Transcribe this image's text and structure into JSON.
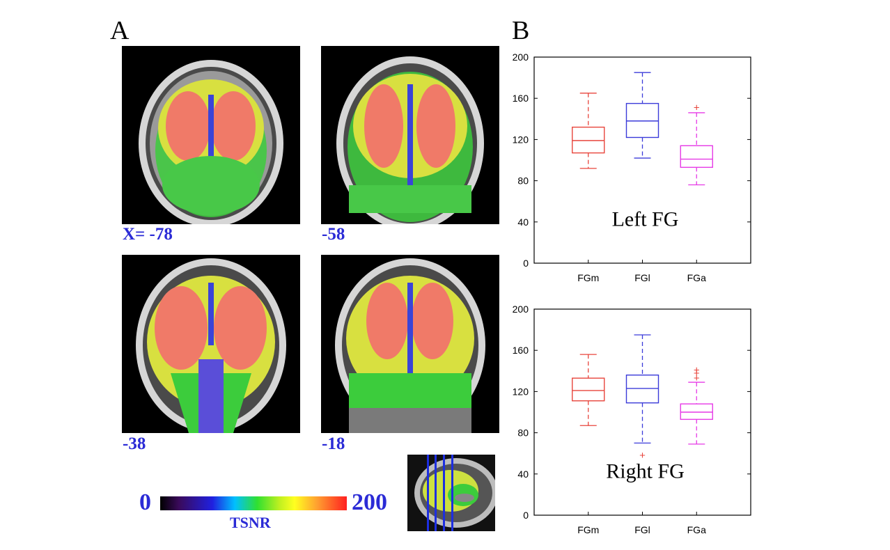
{
  "panel_a": {
    "letter": "A",
    "slice_labels": [
      "X= -78",
      "-58",
      "-38",
      "-18"
    ],
    "colorbar": {
      "min": "0",
      "max": "200",
      "title": "TSNR"
    }
  },
  "panel_b": {
    "letter": "B"
  },
  "chart_data": [
    {
      "type": "box",
      "title": "Left FG",
      "categories": [
        "FGm",
        "FGl",
        "FGa"
      ],
      "ylim": [
        0,
        200
      ],
      "yticks": [
        "0",
        "40",
        "80",
        "120",
        "160",
        "200"
      ],
      "colors": [
        "#e8453c",
        "#3b3bd9",
        "#e639e6"
      ],
      "boxes": [
        {
          "category": "FGm",
          "whisker_low": 92,
          "q1": 107,
          "median": 119,
          "q3": 132,
          "whisker_high": 165,
          "outliers": []
        },
        {
          "category": "FGl",
          "whisker_low": 102,
          "q1": 122,
          "median": 138,
          "q3": 155,
          "whisker_high": 185,
          "outliers": []
        },
        {
          "category": "FGa",
          "whisker_low": 76,
          "q1": 93,
          "median": 101,
          "q3": 114,
          "whisker_high": 146,
          "outliers": [
            151
          ]
        }
      ]
    },
    {
      "type": "box",
      "title": "Right FG",
      "categories": [
        "FGm",
        "FGl",
        "FGa"
      ],
      "ylim": [
        0,
        200
      ],
      "yticks": [
        "0",
        "40",
        "80",
        "120",
        "160",
        "200"
      ],
      "colors": [
        "#e8453c",
        "#3b3bd9",
        "#e639e6"
      ],
      "boxes": [
        {
          "category": "FGm",
          "whisker_low": 87,
          "q1": 111,
          "median": 121,
          "q3": 133,
          "whisker_high": 156,
          "outliers": []
        },
        {
          "category": "FGl",
          "whisker_low": 70,
          "q1": 109,
          "median": 123,
          "q3": 136,
          "whisker_high": 175,
          "outliers": [
            58
          ]
        },
        {
          "category": "FGa",
          "whisker_low": 69,
          "q1": 93,
          "median": 100,
          "q3": 108,
          "whisker_high": 129,
          "outliers": [
            133,
            138,
            141
          ]
        }
      ]
    }
  ]
}
